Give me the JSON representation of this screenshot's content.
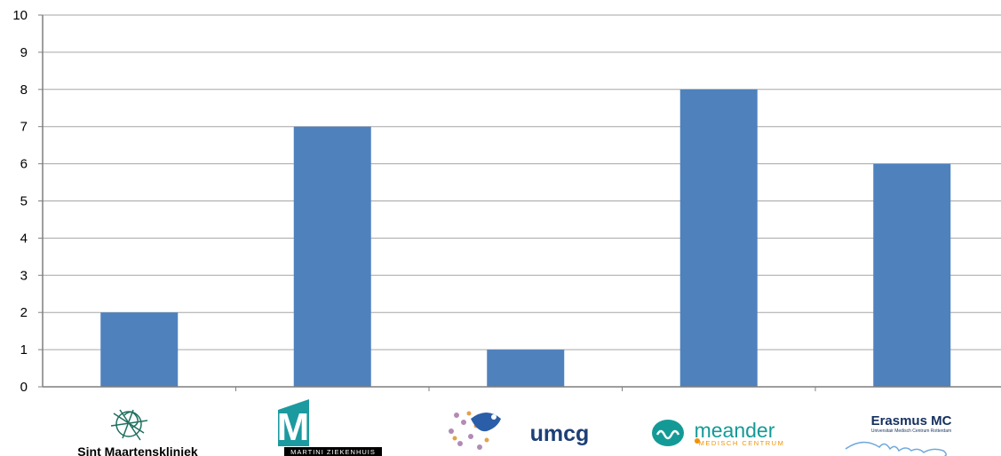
{
  "chart_data": {
    "type": "bar",
    "categories": [
      "Sint Maartenskliniek",
      "Martini Ziekenhuis",
      "umcg",
      "meander",
      "Erasmus MC"
    ],
    "category_logos": [
      {
        "name": "sint-maartenskliniek-logo",
        "text": "Sint Maartenskliniek"
      },
      {
        "name": "martini-ziekenhuis-logo",
        "text": "MARTINI ZIEKENHUIS"
      },
      {
        "name": "umcg-logo",
        "text": "umcg"
      },
      {
        "name": "meander-logo",
        "text": "meander",
        "subtext": "MEDISCH CENTRUM"
      },
      {
        "name": "erasmus-mc-logo",
        "text": "Erasmus MC",
        "subtext": "Universitair Medisch Centrum Rotterdam"
      }
    ],
    "values": [
      2,
      7,
      1,
      8,
      6
    ],
    "ylim": [
      0,
      10
    ],
    "yticks": [
      0,
      1,
      2,
      3,
      4,
      5,
      6,
      7,
      8,
      9,
      10
    ],
    "grid": true,
    "bar_color": "#4f81bd",
    "grid_color": "#a6a6a6",
    "logo_colors": {
      "martini": "#1b9aa0",
      "umcg_text": "#1d3f77",
      "meander": "#149a96",
      "meander_accent": "#f39200",
      "erasmus": "#14305e"
    }
  }
}
